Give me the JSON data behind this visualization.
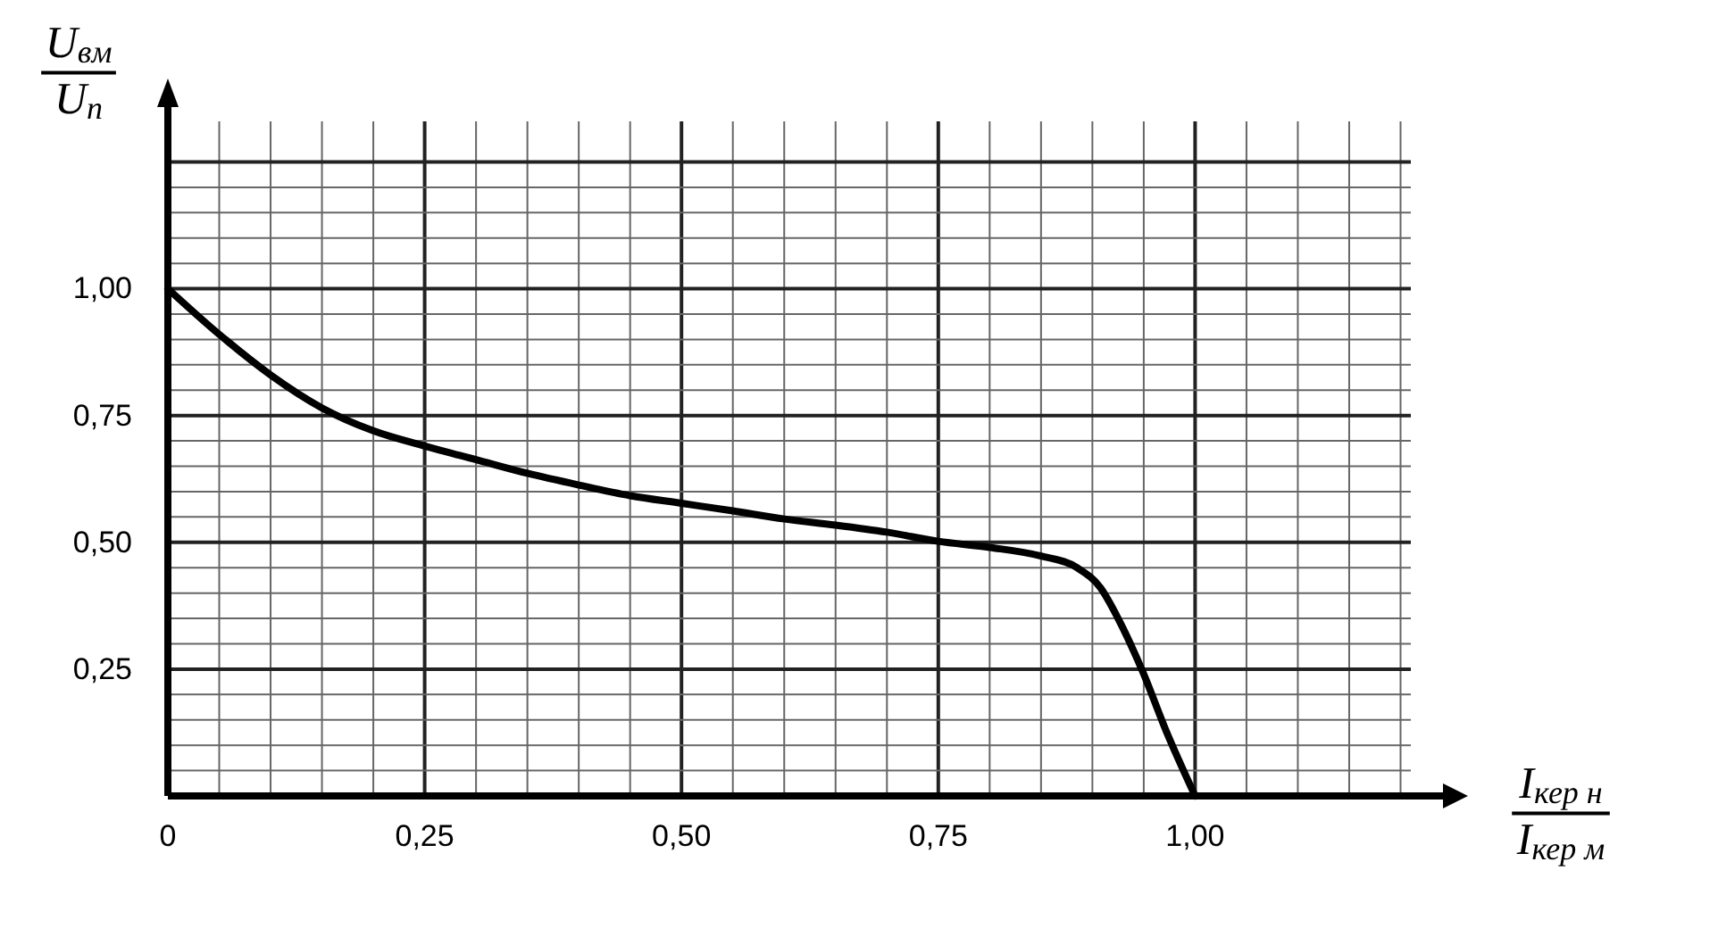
{
  "chart_data": {
    "type": "line",
    "xlabel": "I$_{кер н}$\nI$_{кер м}$",
    "ylabel": "U$_{вм}$\nU$_{п}$",
    "x": [
      0,
      0.05,
      0.1,
      0.15,
      0.2,
      0.25,
      0.3,
      0.35,
      0.4,
      0.45,
      0.5,
      0.55,
      0.6,
      0.65,
      0.7,
      0.75,
      0.8,
      0.85,
      0.885,
      0.908,
      0.925,
      0.949,
      0.972,
      1.0
    ],
    "series": [
      {
        "color": "#000000",
        "values": [
          1.0,
          0.91,
          0.83,
          0.765,
          0.72,
          0.69,
          0.663,
          0.636,
          0.613,
          0.592,
          0.577,
          0.562,
          0.546,
          0.534,
          0.52,
          0.502,
          0.49,
          0.473,
          0.45,
          0.41,
          0.35,
          0.245,
          0.127,
          0
        ]
      }
    ],
    "xlim": [
      0,
      1.21
    ],
    "ylim": [
      0,
      1.33
    ],
    "xticks": [
      {
        "value": 0,
        "label": "0"
      },
      {
        "value": 0.05,
        "label": null
      },
      {
        "value": 0.1,
        "label": null
      },
      {
        "value": 0.15,
        "label": null
      },
      {
        "value": 0.2,
        "label": null
      },
      {
        "value": 0.25,
        "label": "0,25"
      },
      {
        "value": 0.3,
        "label": null
      },
      {
        "value": 0.35,
        "label": null
      },
      {
        "value": 0.4,
        "label": null
      },
      {
        "value": 0.45,
        "label": null
      },
      {
        "value": 0.5,
        "label": "0,50"
      },
      {
        "value": 0.55,
        "label": null
      },
      {
        "value": 0.6,
        "label": null
      },
      {
        "value": 0.65,
        "label": null
      },
      {
        "value": 0.7,
        "label": null
      },
      {
        "value": 0.75,
        "label": "0,75"
      },
      {
        "value": 0.8,
        "label": null
      },
      {
        "value": 0.85,
        "label": null
      },
      {
        "value": 0.9,
        "label": null
      },
      {
        "value": 0.95,
        "label": null
      },
      {
        "value": 1.0,
        "label": "1,00"
      },
      {
        "value": 1.05,
        "label": null
      },
      {
        "value": 1.1,
        "label": null
      },
      {
        "value": 1.15,
        "label": null
      },
      {
        "value": 1.2,
        "label": null
      }
    ],
    "yticks": [
      {
        "value": 0,
        "label": null
      },
      {
        "value": 0.05,
        "label": null
      },
      {
        "value": 0.1,
        "label": null
      },
      {
        "value": 0.15,
        "label": null
      },
      {
        "value": 0.2,
        "label": null
      },
      {
        "value": 0.25,
        "label": "0,25"
      },
      {
        "value": 0.3,
        "label": null
      },
      {
        "value": 0.35,
        "label": null
      },
      {
        "value": 0.4,
        "label": null
      },
      {
        "value": 0.45,
        "label": null
      },
      {
        "value": 0.5,
        "label": "0,50"
      },
      {
        "value": 0.55,
        "label": null
      },
      {
        "value": 0.6,
        "label": null
      },
      {
        "value": 0.65,
        "label": null
      },
      {
        "value": 0.7,
        "label": null
      },
      {
        "value": 0.75,
        "label": "0,75"
      },
      {
        "value": 0.8,
        "label": null
      },
      {
        "value": 0.85,
        "label": null
      },
      {
        "value": 0.9,
        "label": null
      },
      {
        "value": 0.95,
        "label": null
      },
      {
        "value": 1.0,
        "label": "1,00"
      },
      {
        "value": 1.05,
        "label": null
      },
      {
        "value": 1.1,
        "label": null
      },
      {
        "value": 1.15,
        "label": null
      },
      {
        "value": 1.2,
        "label": null
      },
      {
        "value": 1.25,
        "label": null
      }
    ],
    "grid": true
  }
}
